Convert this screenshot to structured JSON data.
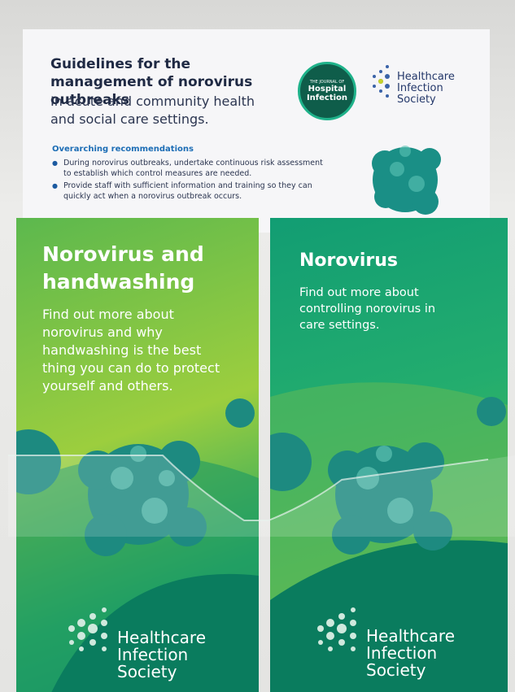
{
  "poster": {
    "title": "Guidelines for the management of norovirus outbreaks",
    "subtitle": "In acute and community health and social care settings.",
    "journal_small": "THE JOURNAL OF",
    "journal_name": "Hospital Infection",
    "org": "Healthcare Infection Society",
    "section_heading": "Overarching recommendations",
    "bullets": [
      "During norovirus outbreaks, undertake continuous risk assessment to establish which control measures are needed.",
      "Provide staff with sufficient information and training so they can quickly act when a norovirus outbreak occurs."
    ]
  },
  "leaflets": [
    {
      "title": "Norovirus and handwashing",
      "body": "Find out more about norovirus and why handwashing is the best thing you can do to protect yourself and others.",
      "org": "Healthcare Infection Society"
    },
    {
      "title": "Norovirus",
      "body": "Find out more about controlling norovirus in care settings.",
      "org": "Healthcare Infection Society"
    }
  ]
}
